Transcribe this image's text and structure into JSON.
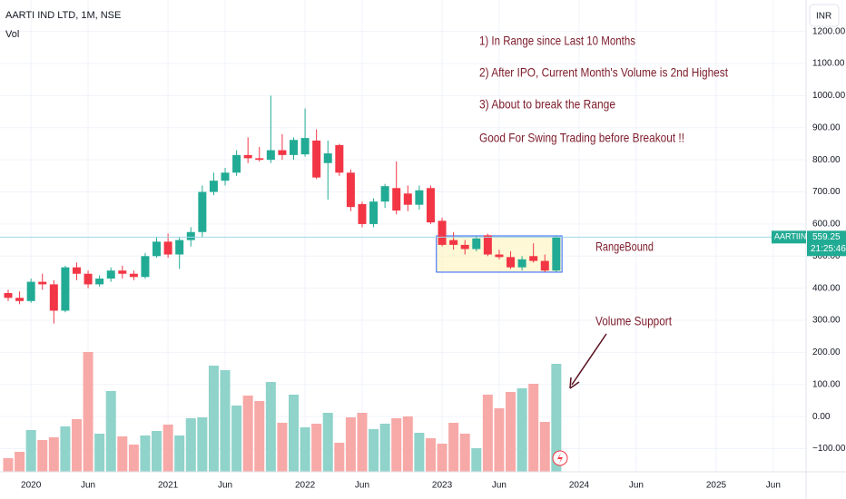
{
  "chart_data": {
    "type": "candlestick",
    "title": "AARTI IND LTD, 1M, NSE",
    "volume_label": "Vol",
    "currency": "INR",
    "price_tag": {
      "symbol": "AARTIIND",
      "price": "559.25",
      "countdown": "21:25:46"
    },
    "categories": [
      "2019-11",
      "2019-12",
      "2020-01",
      "2020-02",
      "2020-03",
      "2020-04",
      "2020-05",
      "2020-06",
      "2020-07",
      "2020-08",
      "2020-09",
      "2020-10",
      "2020-11",
      "2020-12",
      "2021-01",
      "2021-02",
      "2021-03",
      "2021-04",
      "2021-05",
      "2021-06",
      "2021-07",
      "2021-08",
      "2021-09",
      "2021-10",
      "2021-11",
      "2021-12",
      "2022-01",
      "2022-02",
      "2022-03",
      "2022-04",
      "2022-05",
      "2022-06",
      "2022-07",
      "2022-08",
      "2022-09",
      "2022-10",
      "2022-11",
      "2022-12",
      "2023-01",
      "2023-02",
      "2023-03",
      "2023-04",
      "2023-05",
      "2023-06",
      "2023-07",
      "2023-08",
      "2023-09",
      "2023-10",
      "2023-11"
    ],
    "series": [
      {
        "name": "AARTIIND",
        "up_color": "#22ab94",
        "down_color": "#f23645",
        "open": [
          385,
          370,
          360,
          420,
          412,
          330,
          465,
          445,
          412,
          430,
          455,
          445,
          435,
          500,
          545,
          505,
          550,
          575,
          700,
          735,
          760,
          815,
          805,
          800,
          830,
          815,
          817,
          860,
          790,
          846,
          760,
          662,
          600,
          670,
          712,
          695,
          660,
          712,
          610,
          550,
          535,
          522,
          565,
          505,
          497,
          465,
          500,
          485,
          455
        ],
        "high": [
          395,
          390,
          430,
          445,
          425,
          470,
          480,
          455,
          440,
          465,
          470,
          455,
          510,
          560,
          570,
          560,
          590,
          720,
          760,
          775,
          830,
          870,
          840,
          1000,
          880,
          870,
          960,
          895,
          860,
          850,
          770,
          670,
          680,
          725,
          795,
          720,
          720,
          720,
          620,
          575,
          550,
          565,
          570,
          520,
          515,
          500,
          540,
          505,
          565
        ],
        "low": [
          360,
          350,
          355,
          395,
          290,
          325,
          425,
          400,
          405,
          420,
          430,
          425,
          430,
          495,
          495,
          460,
          530,
          560,
          690,
          720,
          750,
          790,
          795,
          790,
          800,
          800,
          810,
          740,
          676,
          750,
          640,
          590,
          590,
          650,
          630,
          640,
          645,
          600,
          530,
          520,
          505,
          515,
          500,
          490,
          460,
          455,
          480,
          450,
          450
        ],
        "close": [
          370,
          360,
          420,
          412,
          330,
          465,
          445,
          412,
          430,
          455,
          445,
          435,
          500,
          545,
          505,
          550,
          575,
          700,
          735,
          760,
          815,
          805,
          800,
          830,
          815,
          862,
          868,
          745,
          820,
          760,
          653,
          600,
          670,
          718,
          642,
          660,
          705,
          605,
          535,
          535,
          522,
          555,
          505,
          497,
          465,
          490,
          485,
          455,
          559.25
        ]
      }
    ],
    "volume": {
      "name": "Vol",
      "up_color": "#8fd3ca",
      "down_color": "#f7a9a7",
      "values": [
        15,
        22,
        46,
        35,
        38,
        50,
        58,
        132,
        42,
        89,
        39,
        30,
        40,
        45,
        52,
        40,
        59,
        60,
        117,
        112,
        73,
        84,
        78,
        99,
        54,
        85,
        49,
        53,
        65,
        32,
        60,
        65,
        47,
        53,
        59,
        61,
        43,
        37,
        31,
        54,
        42,
        26,
        85,
        70,
        88,
        92,
        97,
        55,
        119
      ]
    },
    "ylim": [
      -172,
      1298
    ],
    "yticks": [
      {
        "value": -100,
        "label": "−100.00"
      },
      {
        "value": 0,
        "label": "0.00"
      },
      {
        "value": 100,
        "label": "100.00"
      },
      {
        "value": 200,
        "label": "200.00"
      },
      {
        "value": 300,
        "label": "300.00"
      },
      {
        "value": 400,
        "label": "400.00"
      },
      {
        "value": 500,
        "label": "500.00"
      },
      {
        "value": 600,
        "label": "600.00"
      },
      {
        "value": 700,
        "label": "700.00"
      },
      {
        "value": 800,
        "label": "800.00"
      },
      {
        "value": 900,
        "label": "900.00"
      },
      {
        "value": 1000,
        "label": "1000.00"
      },
      {
        "value": 1100,
        "label": "1100.00"
      },
      {
        "value": 1200,
        "label": "1200.00"
      }
    ],
    "xticks": [
      {
        "value": "2020-01",
        "label": "2020"
      },
      {
        "value": "2020-06",
        "label": "Jun"
      },
      {
        "value": "2021-01",
        "label": "2021"
      },
      {
        "value": "2021-06",
        "label": "Jun"
      },
      {
        "value": "2022-01",
        "label": "2022"
      },
      {
        "value": "2022-06",
        "label": "Jun"
      },
      {
        "value": "2023-01",
        "label": "2023"
      },
      {
        "value": "2023-06",
        "label": "Jun"
      },
      {
        "value": "2024-01",
        "label": "2024"
      },
      {
        "value": "2024-06",
        "label": "Jun"
      },
      {
        "value": "2025-01",
        "label": "2025"
      },
      {
        "value": "2025-06",
        "label": "Jun"
      }
    ],
    "grid": true,
    "range_box": {
      "from": "2023-01",
      "to": "2023-12",
      "low": 450,
      "high": 563
    },
    "annotations": [
      "1) In Range since Last 10 Months",
      "2) After IPO, Current Month's Volume is 2nd Highest",
      "3) About to break the Range",
      "Good For Swing Trading before Breakout !!"
    ],
    "range_label": "RangeBound",
    "volume_note": "Volume Support"
  }
}
